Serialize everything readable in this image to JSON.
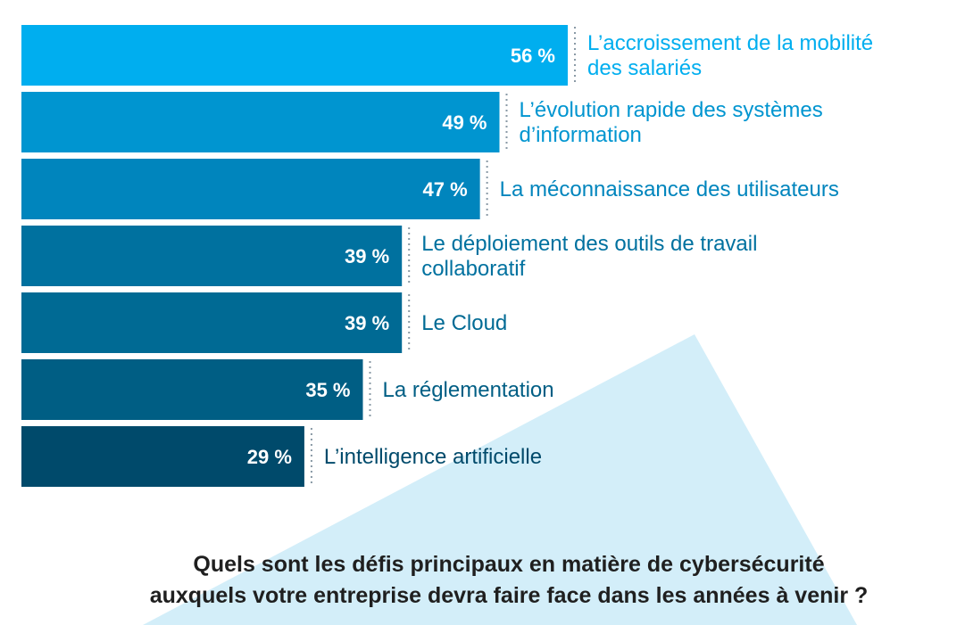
{
  "chart_data": {
    "type": "bar",
    "orientation": "horizontal",
    "title": "Quels sont les défis principaux en matière de cybersécurité auxquels votre entreprise devra faire face dans les années à venir ?",
    "title_lines": [
      "Quels sont les défis principaux en matière de cybersécurité",
      "auxquels votre entreprise devra faire face dans les années à venir ?"
    ],
    "value_suffix": " %",
    "categories": [
      [
        "L’accroissement de la mobilité",
        "des salariés"
      ],
      [
        "L’évolution rapide des systèmes",
        "d’information"
      ],
      [
        "La méconnaissance des utilisateurs"
      ],
      [
        "Le déploiement des outils de travail",
        "collaboratif"
      ],
      [
        "Le Cloud"
      ],
      [
        "La réglementation"
      ],
      [
        "L’intelligence artificielle"
      ]
    ],
    "values": [
      56,
      49,
      47,
      39,
      39,
      35,
      29
    ],
    "value_labels": [
      "56 %",
      "49 %",
      "47 %",
      "39 %",
      "39 %",
      "35 %",
      "29 %"
    ],
    "bar_colors": [
      "#00aeef",
      "#0095d0",
      "#0085bd",
      "#00719f",
      "#006a94",
      "#005e84",
      "#004a6b"
    ],
    "label_colors": [
      "#00aeef",
      "#0095d0",
      "#0085bd",
      "#00719f",
      "#006a94",
      "#005e84",
      "#004a6b"
    ],
    "xlim": [
      0,
      56
    ],
    "grid": false,
    "legend": "none"
  },
  "colors": {
    "background": "#ffffff",
    "triangle": "#d3eef9",
    "title": "#1f1f1f",
    "dotted_line": "#8a9aa6"
  }
}
